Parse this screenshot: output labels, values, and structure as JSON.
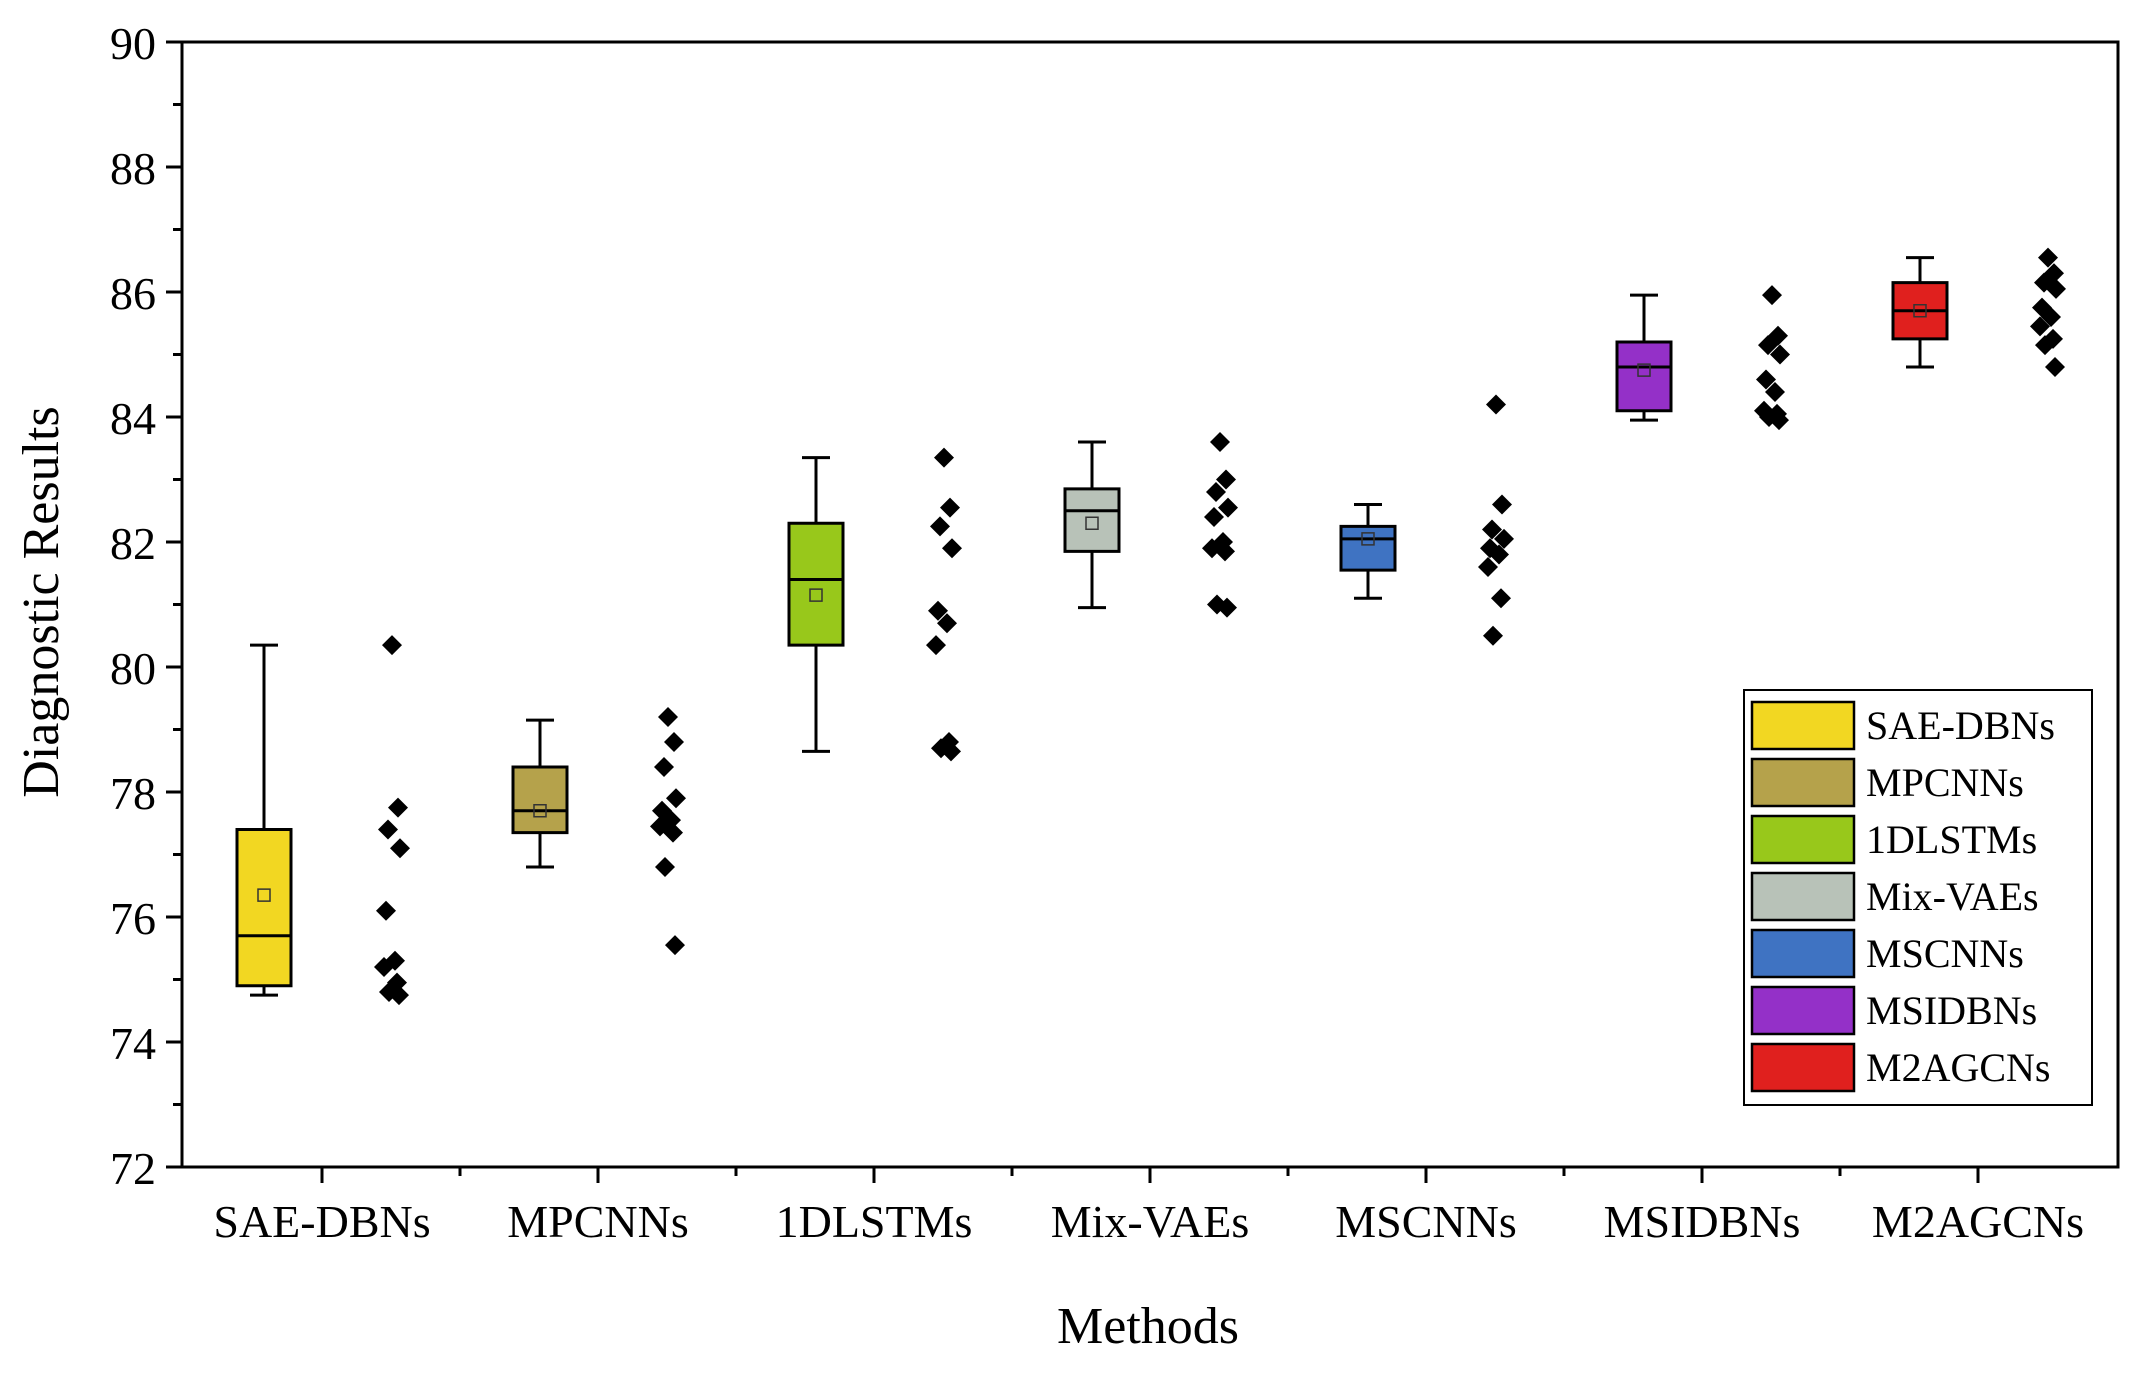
{
  "chart_data": {
    "type": "box",
    "xlabel": "Methods",
    "ylabel": "Diagnostic Results",
    "ylim": [
      72,
      90
    ],
    "yticks": [
      "72",
      "74",
      "76",
      "78",
      "80",
      "82",
      "84",
      "86",
      "88",
      "90"
    ],
    "categories": [
      "SAE-DBNs",
      "MPCNNs",
      "1DLSTMs",
      "Mix-VAEs",
      "MSCNNs",
      "MSIDBNs",
      "M2AGCNs"
    ],
    "grid": false,
    "legend_position": "bottom-right",
    "series": [
      {
        "name": "SAE-DBNs",
        "color": "#f2d722",
        "whisker_low": 74.75,
        "q1": 74.9,
        "median": 75.7,
        "q3": 77.4,
        "whisker_high": 80.35,
        "mean": 76.35,
        "points": [
          80.35,
          77.75,
          77.4,
          77.1,
          76.1,
          75.3,
          75.2,
          74.95,
          74.8,
          74.75
        ]
      },
      {
        "name": "MPCNNs",
        "color": "#b5a24b",
        "whisker_low": 76.8,
        "q1": 77.35,
        "median": 77.7,
        "q3": 78.4,
        "whisker_high": 79.15,
        "mean": 77.7,
        "points": [
          79.2,
          78.8,
          78.4,
          77.9,
          77.7,
          77.55,
          77.45,
          77.35,
          76.8,
          75.55
        ]
      },
      {
        "name": "1DLSTMs",
        "color": "#98c81b",
        "whisker_low": 78.65,
        "q1": 80.35,
        "median": 81.4,
        "q3": 82.3,
        "whisker_high": 83.35,
        "mean": 81.15,
        "points": [
          83.35,
          82.55,
          82.25,
          81.9,
          80.9,
          80.7,
          80.35,
          78.8,
          78.7,
          78.65
        ]
      },
      {
        "name": "Mix-VAEs",
        "color": "#b8c2b8",
        "whisker_low": 80.95,
        "q1": 81.85,
        "median": 82.5,
        "q3": 82.85,
        "whisker_high": 83.6,
        "mean": 82.3,
        "points": [
          83.6,
          83.0,
          82.8,
          82.55,
          82.4,
          82.0,
          81.9,
          81.85,
          81.0,
          80.95
        ]
      },
      {
        "name": "MSCNNs",
        "color": "#3f73c2",
        "whisker_low": 81.1,
        "q1": 81.55,
        "median": 82.05,
        "q3": 82.25,
        "whisker_high": 82.6,
        "mean": 82.05,
        "points": [
          84.2,
          82.6,
          82.2,
          82.05,
          81.9,
          81.8,
          81.6,
          81.1,
          80.5
        ]
      },
      {
        "name": "MSIDBNs",
        "color": "#9430c8",
        "whisker_low": 83.95,
        "q1": 84.1,
        "median": 84.8,
        "q3": 85.2,
        "whisker_high": 85.95,
        "mean": 84.75,
        "points": [
          85.95,
          85.3,
          85.15,
          85.0,
          84.6,
          84.4,
          84.1,
          84.05,
          84.0,
          83.95
        ]
      },
      {
        "name": "M2AGCNs",
        "color": "#e0201e",
        "whisker_low": 84.8,
        "q1": 85.25,
        "median": 85.7,
        "q3": 86.15,
        "whisker_high": 86.55,
        "mean": 85.7,
        "points": [
          86.55,
          86.3,
          86.15,
          86.05,
          85.75,
          85.6,
          85.45,
          85.25,
          85.15,
          84.8
        ]
      }
    ]
  }
}
